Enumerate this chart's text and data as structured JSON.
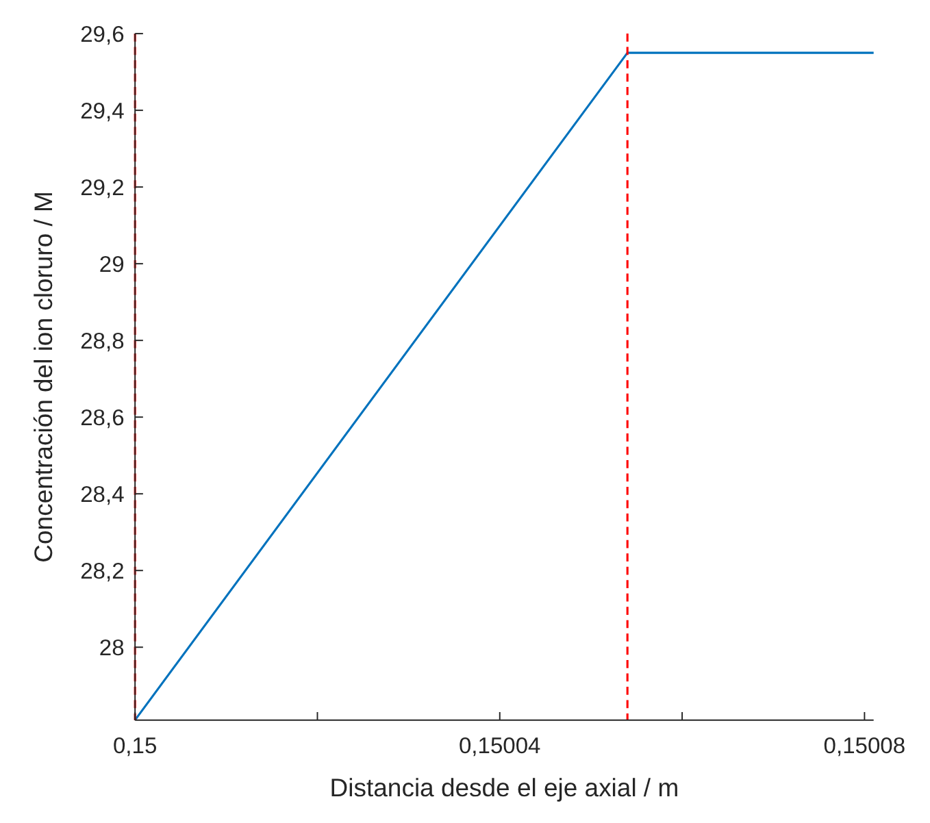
{
  "chart_data": {
    "type": "line",
    "xlabel": "Distancia desde el eje axial / m",
    "ylabel": "Concentración del ion cloruro / M",
    "x": [
      0.15,
      0.150054,
      0.150081
    ],
    "series": [
      {
        "color": "#0072bd",
        "values": [
          27.81,
          29.55,
          29.55
        ]
      }
    ],
    "xlim": [
      0.15,
      0.150081
    ],
    "ylim": [
      27.81,
      29.6
    ],
    "xticks": [
      {
        "value": 0.15,
        "label": "0,15"
      },
      {
        "value": 0.15002,
        "label": null
      },
      {
        "value": 0.15004,
        "label": "0,15004"
      },
      {
        "value": 0.15006,
        "label": null
      },
      {
        "value": 0.15008,
        "label": "0,15008"
      }
    ],
    "yticks": [
      28,
      {
        "value": 28.2,
        "label": "28,2"
      },
      {
        "value": 28.4,
        "label": "28,4"
      },
      {
        "value": 28.6,
        "label": "28,6"
      },
      {
        "value": 28.8,
        "label": "28,8"
      },
      29,
      {
        "value": 29.2,
        "label": "29,2"
      },
      {
        "value": 29.4,
        "label": "29,4"
      },
      {
        "value": 29.6,
        "label": "29,6"
      }
    ],
    "ref_lines": [
      {
        "axis": "x",
        "value": 0.15,
        "color": "#ff0000",
        "line_style": "dashed"
      },
      {
        "axis": "x",
        "value": 0.150054,
        "color": "#ff0000",
        "line_style": "dashed"
      }
    ],
    "grid": false,
    "line_style": "solid",
    "marker": "none"
  }
}
